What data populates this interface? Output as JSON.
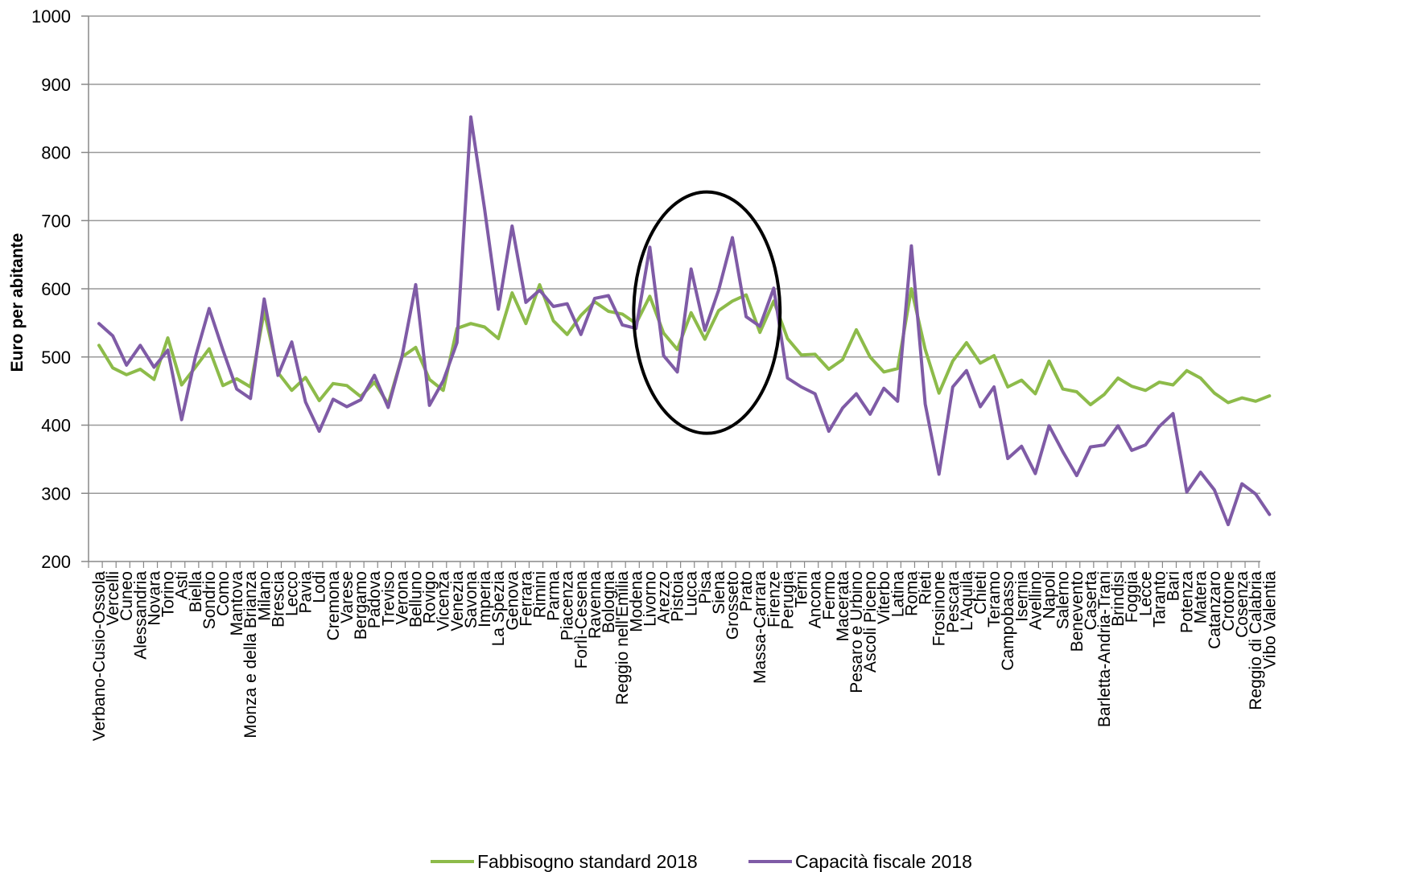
{
  "chart_data": {
    "type": "line",
    "ylabel": "Euro per abitante",
    "ylim": [
      200,
      1000
    ],
    "yticks": [
      "200",
      "300",
      "400",
      "500",
      "600",
      "700",
      "800",
      "900",
      "1000"
    ],
    "grid": "horizontal",
    "legend_position": "bottom",
    "categories": [
      "Verbano-Cusio-Ossola",
      "Vercelli",
      "Cuneo",
      "Alessandria",
      "Novara",
      "Torino",
      "Asti",
      "Biella",
      "Sondrio",
      "Como",
      "Mantova",
      "Monza e della Brianza",
      "Milano",
      "Brescia",
      "Lecco",
      "Pavia",
      "Lodi",
      "Cremona",
      "Varese",
      "Bergamo",
      "Padova",
      "Treviso",
      "Verona",
      "Belluno",
      "Rovigo",
      "Vicenza",
      "Venezia",
      "Savona",
      "Imperia",
      "La Spezia",
      "Genova",
      "Ferrara",
      "Rimini",
      "Parma",
      "Piacenza",
      "Forlì-Cesena",
      "Ravenna",
      "Bologna",
      "Reggio nell'Emilia",
      "Modena",
      "Livorno",
      "Arezzo",
      "Pistoia",
      "Lucca",
      "Pisa",
      "Siena",
      "Grosseto",
      "Prato",
      "Massa-Carrara",
      "Firenze",
      "Perugia",
      "Terni",
      "Ancona",
      "Fermo",
      "Macerata",
      "Pesaro e Urbino",
      "Ascoli Piceno",
      "Viterbo",
      "Latina",
      "Roma",
      "Rieti",
      "Frosinone",
      "Pescara",
      "L'Aquila",
      "Chieti",
      "Teramo",
      "Campobasso",
      "Isernia",
      "Avellino",
      "Napoli",
      "Salerno",
      "Benevento",
      "Caserta",
      "Barletta-Andria-Trani",
      "Brindisi",
      "Foggia",
      "Lecce",
      "Taranto",
      "Bari",
      "Potenza",
      "Matera",
      "Catanzaro",
      "Crotone",
      "Cosenza",
      "Reggio di Calabria",
      "Vibo Valentia"
    ],
    "series": [
      {
        "name": "Fabbisogno standard 2018",
        "color": "#8DBB4A",
        "values": [
          517,
          484,
          474,
          482,
          467,
          528,
          459,
          485,
          512,
          458,
          468,
          456,
          567,
          477,
          451,
          470,
          436,
          461,
          458,
          442,
          463,
          431,
          500,
          514,
          467,
          451,
          542,
          549,
          544,
          527,
          594,
          549,
          606,
          553,
          533,
          561,
          581,
          567,
          563,
          549,
          589,
          535,
          511,
          565,
          526,
          568,
          582,
          591,
          536,
          582,
          527,
          503,
          504,
          482,
          496,
          540,
          500,
          478,
          483,
          600,
          511,
          447,
          494,
          521,
          491,
          502,
          456,
          466,
          446,
          494,
          453,
          449,
          430,
          445,
          469,
          457,
          451,
          463,
          459,
          480,
          469,
          447,
          433,
          440,
          435,
          443
        ]
      },
      {
        "name": "Capacità fiscale 2018",
        "color": "#7F5BA6",
        "values": [
          549,
          531,
          488,
          517,
          485,
          510,
          408,
          500,
          571,
          510,
          453,
          439,
          585,
          473,
          522,
          434,
          391,
          438,
          427,
          437,
          473,
          426,
          500,
          606,
          429,
          465,
          521,
          852,
          717,
          570,
          692,
          580,
          598,
          574,
          578,
          533,
          586,
          590,
          547,
          542,
          661,
          502,
          478,
          629,
          539,
          598,
          675,
          559,
          545,
          601,
          469,
          456,
          446,
          391,
          425,
          446,
          416,
          454,
          435,
          663,
          431,
          328,
          456,
          480,
          427,
          456,
          351,
          369,
          329,
          399,
          361,
          326,
          368,
          371,
          399,
          363,
          371,
          398,
          417,
          302,
          331,
          305,
          254,
          314,
          299,
          269
        ]
      }
    ],
    "annotations": [
      {
        "type": "ellipse",
        "label": "",
        "from_category": "Livorno",
        "to_category": "Massa-Carrara",
        "y_range": [
          388,
          742
        ]
      }
    ]
  }
}
